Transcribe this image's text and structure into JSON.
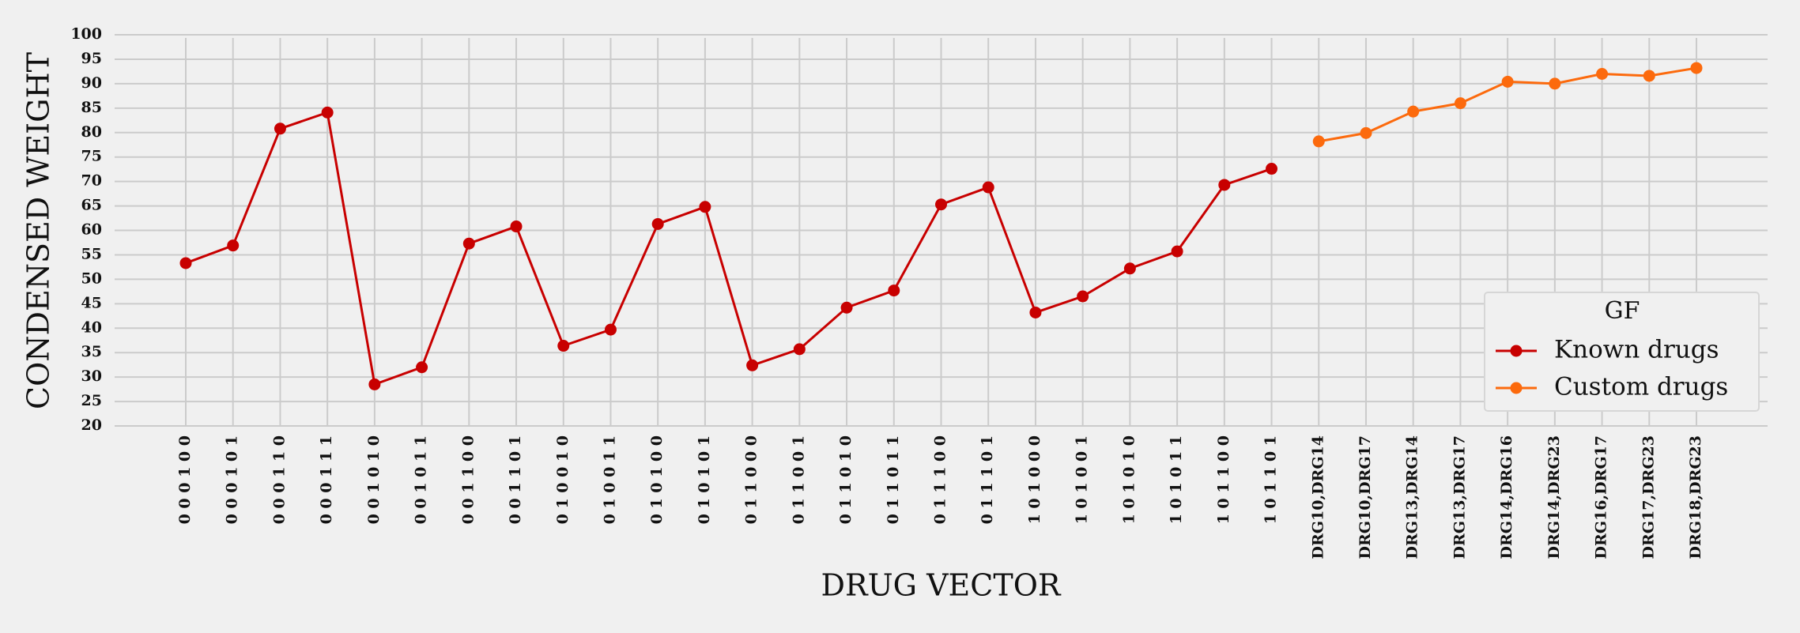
{
  "chart_data": {
    "type": "line",
    "xlabel": "DRUG VECTOR",
    "ylabel": "CONDENSED WEIGHT",
    "categories": [
      "0 0 0 1 0 0",
      "0 0 0 1 0 1",
      "0 0 0 1 1 0",
      "0 0 0 1 1 1",
      "0 0 1 0 1 0",
      "0 0 1 0 1 1",
      "0 0 1 1 0 0",
      "0 0 1 1 0 1",
      "0 1 0 0 1 0",
      "0 1 0 0 1 1",
      "0 1 0 1 0 0",
      "0 1 0 1 0 1",
      "0 1 1 0 0 0",
      "0 1 1 0 0 1",
      "0 1 1 0 1 0",
      "0 1 1 0 1 1",
      "0 1 1 1 0 0",
      "0 1 1 1 0 1",
      "1 0 1 0 0 0",
      "1 0 1 0 0 1",
      "1 0 1 0 1 0",
      "1 0 1 0 1 1",
      "1 0 1 1 0 0",
      "1 0 1 1 0 1",
      "DRG10,DRG14",
      "DRG10,DRG17",
      "DRG13,DRG14",
      "DRG13,DRG17",
      "DRG14,DRG16",
      "DRG14,DRG23",
      "DRG16,DRG17",
      "DRG17,DRG23",
      "DRG18,DRG23"
    ],
    "series": [
      {
        "name": "Known drugs",
        "color": "#c80000",
        "values": [
          53.3,
          56.9,
          80.8,
          84.1,
          28.5,
          32,
          57.3,
          60.8,
          36.4,
          39.7,
          61.3,
          64.8,
          32.4,
          35.7,
          44.2,
          47.7,
          65.3,
          68.8,
          43.2,
          46.5,
          52.2,
          55.7,
          69.3,
          72.6,
          null,
          null,
          null,
          null,
          null,
          null,
          null,
          null,
          null
        ]
      },
      {
        "name": "Custom drugs",
        "color": "#fc6a0d",
        "values": [
          null,
          null,
          null,
          null,
          null,
          null,
          null,
          null,
          null,
          null,
          null,
          null,
          null,
          null,
          null,
          null,
          null,
          null,
          null,
          null,
          null,
          null,
          null,
          null,
          78.2,
          79.9,
          84.3,
          86,
          90.4,
          90,
          92,
          91.6,
          93.2
        ]
      }
    ],
    "legend_title": "GF",
    "legend": "lower right",
    "ylim": [
      20,
      100
    ],
    "yticks": [
      20,
      25,
      30,
      35,
      40,
      45,
      50,
      55,
      60,
      65,
      70,
      75,
      80,
      85,
      90,
      95,
      100
    ],
    "grid": true
  }
}
